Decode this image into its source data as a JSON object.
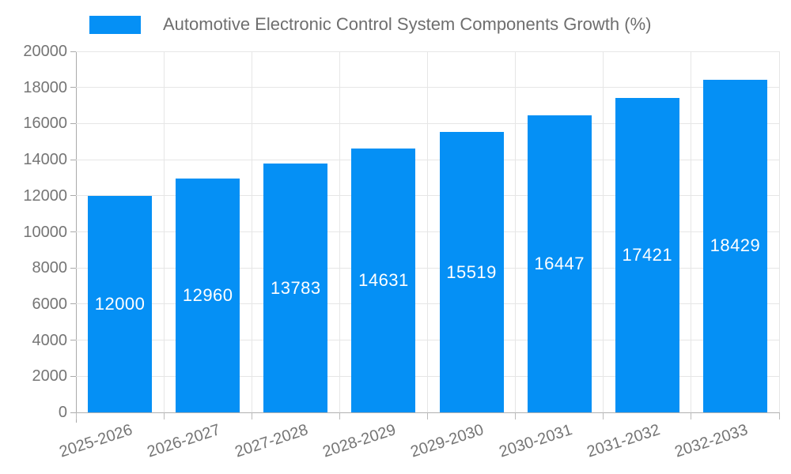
{
  "legend": {
    "items": [
      {
        "label": "Automotive Electronic Control System Components Growth (%)",
        "color": "#0590f5"
      }
    ]
  },
  "chart_data": {
    "type": "bar",
    "title": "Automotive Electronic Control System Components Growth (%)",
    "categories": [
      "2025-2026",
      "2026-2027",
      "2027-2028",
      "2028-2029",
      "2029-2030",
      "2030-2031",
      "2031-2032",
      "2032-2033"
    ],
    "values": [
      12000,
      12960,
      13783,
      14631,
      15519,
      16447,
      17421,
      18429
    ],
    "y_ticks": [
      0,
      2000,
      4000,
      6000,
      8000,
      10000,
      12000,
      14000,
      16000,
      18000,
      20000
    ],
    "ylim": [
      0,
      20000
    ],
    "xlabel": "",
    "ylabel": "",
    "grid": true,
    "legend_position": "top-left",
    "bar_color": "#0590f5",
    "value_label_color": "#ffffff",
    "x_label_rotation_deg": -18
  },
  "colors": {
    "background": "#ffffff",
    "grid": "#e6e6e6",
    "axis_line": "#aaaaaa",
    "tick_label": "#757575",
    "title": "#6e6e6e",
    "bar": "#0590f5",
    "value_label": "#ffffff"
  }
}
